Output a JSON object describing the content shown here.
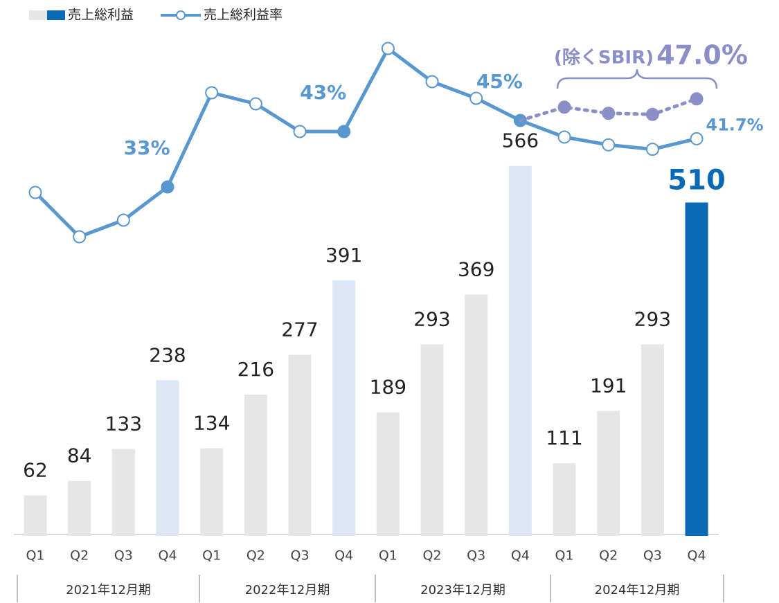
{
  "chart_data": {
    "type": "bar",
    "categories": [
      "Q1",
      "Q2",
      "Q3",
      "Q4",
      "Q1",
      "Q2",
      "Q3",
      "Q4",
      "Q1",
      "Q2",
      "Q3",
      "Q4",
      "Q1",
      "Q2",
      "Q3",
      "Q4"
    ],
    "groups": [
      "2021年12月期",
      "2022年12月期",
      "2023年12月期",
      "2024年12月期"
    ],
    "series": [
      {
        "name": "売上総利益",
        "type": "bar",
        "colors": [
          "#e6e6e6",
          "#e6e6e6",
          "#e6e6e6",
          "#dce8f5",
          "#e6e6e6",
          "#e6e6e6",
          "#e6e6e6",
          "#dce8f5",
          "#e6e6e6",
          "#e6e6e6",
          "#e6e6e6",
          "#dce8f5",
          "#e6e6e6",
          "#e6e6e6",
          "#e6e6e6",
          "#0a6ab6"
        ],
        "values": [
          62,
          84,
          133,
          238,
          134,
          216,
          277,
          391,
          189,
          293,
          369,
          566,
          111,
          191,
          293,
          510
        ]
      },
      {
        "name": "売上総利益率",
        "type": "line",
        "axis": "y2",
        "color": "#5897cf",
        "values": [
          32,
          24,
          27,
          33,
          50,
          48,
          43,
          43,
          58,
          52,
          49,
          45,
          42,
          40.6,
          39.8,
          41.7
        ],
        "value_labels": [
          null,
          null,
          null,
          "33%",
          null,
          null,
          null,
          "43%",
          null,
          null,
          null,
          "45%",
          null,
          null,
          null,
          "41.7%"
        ]
      },
      {
        "type": "line",
        "axis": "y2",
        "color": "#8a8fc8",
        "dashed": true,
        "values": [
          null,
          null,
          null,
          null,
          null,
          null,
          null,
          null,
          null,
          null,
          null,
          45,
          47.4,
          46.3,
          46.1,
          48.9
        ]
      }
    ],
    "annotations": [
      {
        "text": "(除くSBIR)"
      },
      {
        "text": "47.0%"
      }
    ],
    "ylim": [
      0,
      805
    ],
    "y2lim": [
      -30,
      65
    ]
  }
}
